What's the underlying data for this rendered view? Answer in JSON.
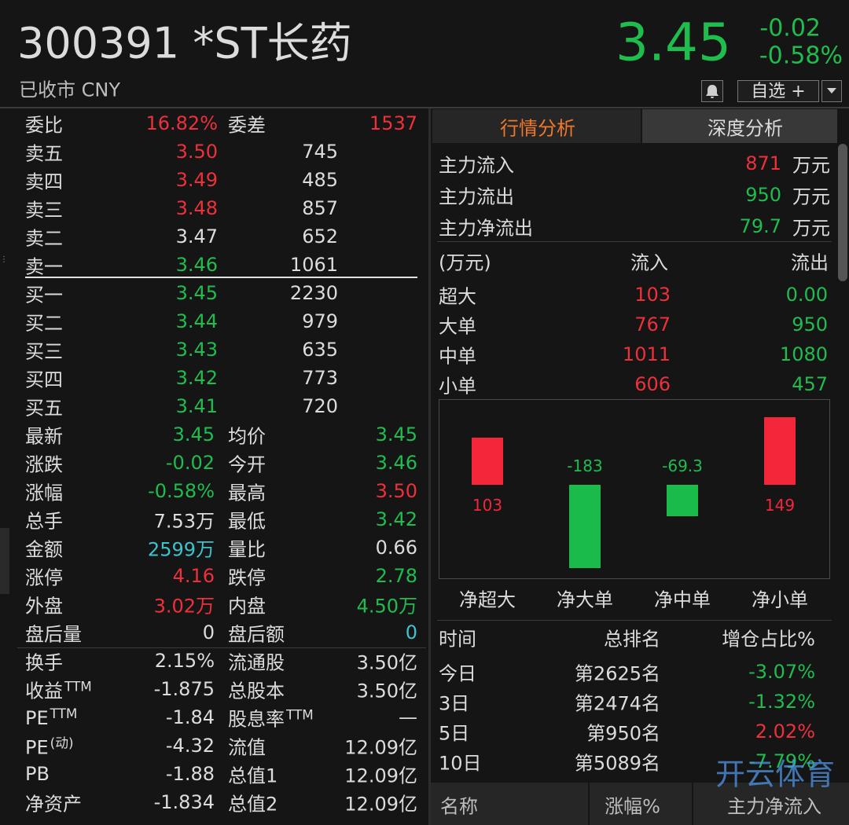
{
  "header": {
    "code": "300391",
    "name": "*ST长药",
    "status": "已收市 CNY",
    "price": "3.45",
    "change": "-0.02",
    "change_pct": "-0.58%",
    "color": "#1fbd4e",
    "watchlist": "自选 +"
  },
  "order_book": {
    "summary": [
      {
        "label": "委比",
        "value": "16.82%",
        "color": "#ee303a"
      },
      {
        "label": "委差",
        "value": "1537",
        "color": "#ee303a"
      }
    ],
    "asks": [
      {
        "label": "卖五",
        "price": "3.50",
        "volume": "745",
        "color": "#ee303a"
      },
      {
        "label": "卖四",
        "price": "3.49",
        "volume": "485",
        "color": "#ee303a"
      },
      {
        "label": "卖三",
        "price": "3.48",
        "volume": "857",
        "color": "#ee303a"
      },
      {
        "label": "卖二",
        "price": "3.47",
        "volume": "652",
        "color": "#dcdcdc"
      },
      {
        "label": "卖一",
        "price": "3.46",
        "volume": "1061",
        "color": "#1fbd4e"
      }
    ],
    "bids": [
      {
        "label": "买一",
        "price": "3.45",
        "volume": "2230",
        "color": "#1fbd4e"
      },
      {
        "label": "买二",
        "price": "3.44",
        "volume": "979",
        "color": "#1fbd4e"
      },
      {
        "label": "买三",
        "price": "3.43",
        "volume": "635",
        "color": "#1fbd4e"
      },
      {
        "label": "买四",
        "price": "3.42",
        "volume": "773",
        "color": "#1fbd4e"
      },
      {
        "label": "买五",
        "price": "3.41",
        "volume": "720",
        "color": "#1fbd4e"
      }
    ]
  },
  "quote": {
    "rows": [
      [
        {
          "label": "最新",
          "value": "3.45",
          "color": "#1fbd4e"
        },
        {
          "label": "均价",
          "value": "3.45",
          "color": "#1fbd4e"
        }
      ],
      [
        {
          "label": "涨跌",
          "value": "-0.02",
          "color": "#1fbd4e"
        },
        {
          "label": "今开",
          "value": "3.46",
          "color": "#1fbd4e"
        }
      ],
      [
        {
          "label": "涨幅",
          "value": "-0.58%",
          "color": "#1fbd4e"
        },
        {
          "label": "最高",
          "value": "3.50",
          "color": "#ee303a"
        }
      ],
      [
        {
          "label": "总手",
          "value": "7.53万",
          "color": "#dcdcdc"
        },
        {
          "label": "最低",
          "value": "3.42",
          "color": "#1fbd4e"
        }
      ],
      [
        {
          "label": "金额",
          "value": "2599万",
          "color": "#3cc3cd"
        },
        {
          "label": "量比",
          "value": "0.66",
          "color": "#dcdcdc"
        }
      ],
      [
        {
          "label": "涨停",
          "value": "4.16",
          "color": "#ee303a"
        },
        {
          "label": "跌停",
          "value": "2.78",
          "color": "#1fbd4e"
        }
      ],
      [
        {
          "label": "外盘",
          "value": "3.02万",
          "color": "#ee303a"
        },
        {
          "label": "内盘",
          "value": "4.50万",
          "color": "#1fbd4e"
        }
      ],
      [
        {
          "label": "盘后量",
          "value": "0",
          "color": "#dcdcdc"
        },
        {
          "label": "盘后额",
          "value": "0",
          "color": "#3cc3cd"
        }
      ],
      [
        {
          "label": "换手",
          "value": "2.15%",
          "color": "#dcdcdc"
        },
        {
          "label": "流通股",
          "value": "3.50亿",
          "color": "#dcdcdc"
        }
      ],
      [
        {
          "label": "收益",
          "sup": "TTM",
          "value": "-1.875",
          "color": "#dcdcdc"
        },
        {
          "label": "总股本",
          "value": "3.50亿",
          "color": "#dcdcdc"
        }
      ],
      [
        {
          "label": "PE",
          "sup": "TTM",
          "value": "-1.84",
          "color": "#dcdcdc"
        },
        {
          "label": "股息率",
          "sup": "TTM",
          "value": "—",
          "color": "#dcdcdc"
        }
      ],
      [
        {
          "label": "PE",
          "sup": "(动)",
          "value": "-4.32",
          "color": "#dcdcdc"
        },
        {
          "label": "流值",
          "value": "12.09亿",
          "color": "#dcdcdc"
        }
      ],
      [
        {
          "label": "PB",
          "value": "-1.88",
          "color": "#dcdcdc"
        },
        {
          "label": "总值1",
          "value": "12.09亿",
          "color": "#dcdcdc"
        }
      ],
      [
        {
          "label": "净资产",
          "value": "-1.834",
          "color": "#dcdcdc"
        },
        {
          "label": "总值2",
          "value": "12.09亿",
          "color": "#dcdcdc"
        }
      ]
    ]
  },
  "analysis": {
    "tabs": [
      "行情分析",
      "深度分析"
    ],
    "flow_summary": [
      {
        "label": "主力流入",
        "value": "871",
        "unit": "万元",
        "color": "#ee303a"
      },
      {
        "label": "主力流出",
        "value": "950",
        "unit": "万元",
        "color": "#1fbd4e"
      },
      {
        "label": "主力净流出",
        "value": "79.7",
        "unit": "万元",
        "color": "#1fbd4e"
      }
    ],
    "flow_table": {
      "header": [
        "(万元)",
        "流入",
        "流出"
      ],
      "in_color": "#ee303a",
      "out_color": "#1fbd4e",
      "rows": [
        {
          "label": "超大",
          "in": "103",
          "out": "0.00"
        },
        {
          "label": "大单",
          "in": "767",
          "out": "950"
        },
        {
          "label": "中单",
          "in": "1011",
          "out": "1080"
        },
        {
          "label": "小单",
          "in": "606",
          "out": "457"
        }
      ]
    },
    "net_flow_chart": {
      "type": "bar",
      "categories": [
        "净超大",
        "净大单",
        "净中单",
        "净小单"
      ],
      "values": [
        103,
        -183,
        -69.3,
        149
      ],
      "colors": {
        "positive": "#f4263a",
        "negative": "#1bbb4b"
      }
    },
    "ranking": {
      "header": [
        "时间",
        "总排名",
        "增仓占比%"
      ],
      "rows": [
        {
          "period": "今日",
          "rank": "第2625名",
          "share": "-3.07%",
          "color": "#1fbd4e"
        },
        {
          "period": "3日",
          "rank": "第2474名",
          "share": "-1.32%",
          "color": "#1fbd4e"
        },
        {
          "period": "5日",
          "rank": "第950名",
          "share": "2.02%",
          "color": "#ee303a"
        },
        {
          "period": "10日",
          "rank": "第5089名",
          "share": "-7.79%",
          "color": "#1fbd4e"
        }
      ]
    },
    "list_header": [
      "名称",
      "涨幅%",
      "主力净流入"
    ]
  },
  "watermark": "开云体育"
}
